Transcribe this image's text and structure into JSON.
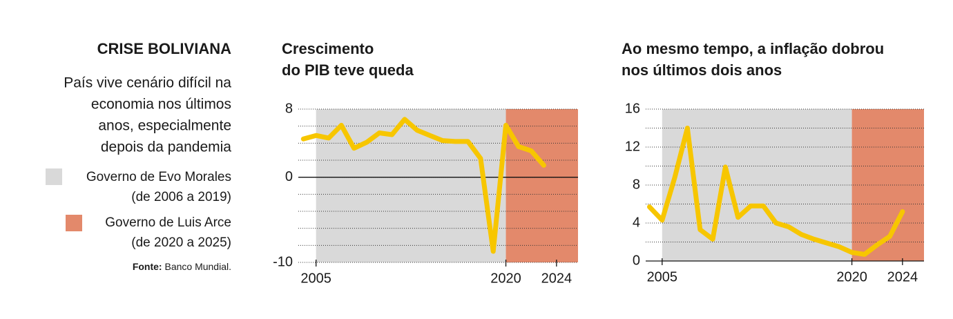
{
  "header": {
    "title": "CRISE BOLIVIANA",
    "description": [
      "País vive cenário difícil na",
      "economia nos últimos",
      "anos, especialmente",
      "depois da pandemia"
    ],
    "legend": [
      {
        "lines": [
          "Governo de Evo Morales",
          "(de 2006 a 2019)"
        ],
        "color": "#d9d9d9"
      },
      {
        "lines": [
          "Governo de Luis Arce",
          "(de 2020 a 2025)"
        ],
        "color": "#e3896b"
      }
    ],
    "source_label": "Fonte:",
    "source_text": "Banco Mundial."
  },
  "chart_data": [
    {
      "type": "line",
      "title": [
        "Crescimento",
        "do PIB teve queda"
      ],
      "x": [
        2004,
        2005,
        2006,
        2007,
        2008,
        2009,
        2010,
        2011,
        2012,
        2013,
        2014,
        2015,
        2016,
        2017,
        2018,
        2019,
        2020,
        2021,
        2022,
        2023,
        2024
      ],
      "values": [
        4.5,
        4.9,
        4.6,
        6.1,
        3.4,
        4.1,
        5.2,
        5.0,
        6.8,
        5.5,
        4.9,
        4.3,
        4.2,
        4.2,
        2.2,
        -8.7,
        6.1,
        3.6,
        3.1,
        1.4,
        null
      ],
      "color": "#f7c600",
      "xlim": [
        2003.6,
        2025.7
      ],
      "xticks": [
        2005,
        2020,
        2024
      ],
      "ylim": [
        -10,
        8
      ],
      "yticks": [
        -10,
        0,
        8
      ],
      "grid_ticks": [
        -10,
        -8,
        -6,
        -4,
        -2,
        0,
        2,
        4,
        6,
        8
      ],
      "bands": [
        {
          "from": 2005,
          "to": 2020,
          "color": "#d9d9d9"
        },
        {
          "from": 2020,
          "to": 2025.7,
          "color": "#e3896b"
        }
      ]
    },
    {
      "type": "line",
      "title": [
        "Ao mesmo tempo, a inflação dobrou",
        "nos últimos dois anos"
      ],
      "x": [
        2004,
        2005,
        2006,
        2007,
        2008,
        2009,
        2010,
        2011,
        2012,
        2013,
        2014,
        2015,
        2016,
        2017,
        2018,
        2019,
        2020,
        2021,
        2022,
        2023,
        2024
      ],
      "values": [
        5.7,
        4.3,
        8.8,
        14.0,
        3.3,
        2.3,
        9.9,
        4.6,
        5.8,
        5.8,
        4.0,
        3.6,
        2.8,
        2.3,
        1.9,
        1.5,
        0.9,
        0.7,
        1.7,
        2.6,
        5.2
      ],
      "color": "#f7c600",
      "xlim": [
        2003.7,
        2025.7
      ],
      "xticks": [
        2005,
        2020,
        2024
      ],
      "ylim": [
        0,
        16
      ],
      "yticks": [
        0,
        4,
        8,
        12,
        16
      ],
      "grid_ticks": [
        0,
        2,
        4,
        6,
        8,
        10,
        12,
        14,
        16
      ],
      "bands": [
        {
          "from": 2005,
          "to": 2020,
          "color": "#d9d9d9"
        },
        {
          "from": 2020,
          "to": 2025.7,
          "color": "#e3896b"
        }
      ]
    }
  ]
}
